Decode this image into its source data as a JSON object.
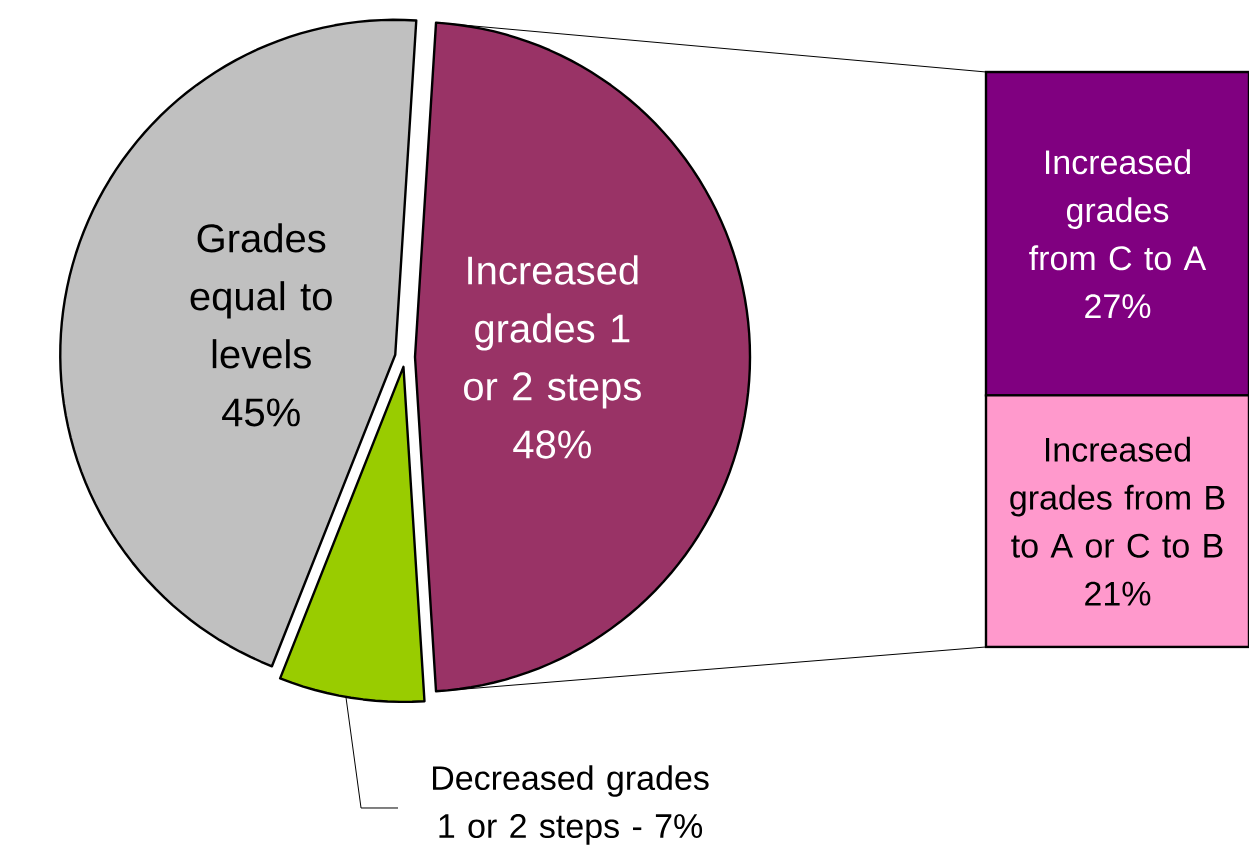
{
  "chart_data": [
    {
      "type": "pie",
      "categories": [
        "Grades equal to levels",
        "Increased grades 1 or 2 steps",
        "Decreased grades 1 or 2 steps -"
      ],
      "values": [
        45,
        48,
        7
      ],
      "colors": [
        "#c0c0c0",
        "#993366",
        "#99cc00"
      ],
      "value_labels": [
        "45%",
        "48%",
        "7%"
      ]
    },
    {
      "type": "bar",
      "stacked": true,
      "categories": [
        null
      ],
      "series": [
        {
          "name": "Increased grades from B to A or C to B",
          "color": "#ff99cc",
          "values": [
            21
          ],
          "value_labels": [
            "21%"
          ]
        },
        {
          "name": "Increased grades from C to A",
          "color": "#800080",
          "values": [
            27
          ],
          "value_labels": [
            "27%"
          ]
        }
      ]
    }
  ]
}
